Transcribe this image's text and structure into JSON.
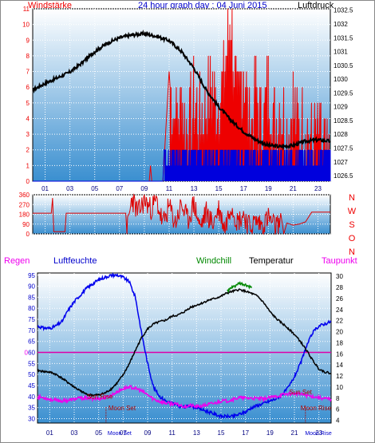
{
  "header": {
    "left_label": "Windstärke",
    "title": "24 hour graph day : 04 Juni 2015",
    "right_label": "Luftdruck"
  },
  "panel3_header": {
    "regen": "Regen",
    "luftfeuchte": "Luftfeuchte",
    "windchill": "Windchill",
    "temperatur": "Temperatur",
    "taupunkt": "Taupunkt"
  },
  "colors": {
    "wind_red": "#ee0000",
    "wind_blue": "#0000dd",
    "pressure": "#000000",
    "direction": "#dd0000",
    "humidity": "#0000ee",
    "temperature": "#000000",
    "dewpoint": "#ee00ee",
    "windchill": "#008800",
    "rain_line": "#dd00aa",
    "grid_dot": "#ffffff",
    "bg_top": "#ffffff",
    "bg_bottom": "#3a8fd0"
  },
  "x_axis": {
    "hour_ticks": [
      "01",
      "03",
      "05",
      "07",
      "09",
      "11",
      "13",
      "15",
      "17",
      "19",
      "21",
      "23"
    ],
    "panel3_ticks": [
      "01",
      "03",
      "05",
      "07",
      "09",
      "11",
      "13",
      "15",
      "17",
      "19",
      "21",
      "23"
    ]
  },
  "chart_data": [
    {
      "type": "line",
      "title": "24 hour graph day : 04 Juni 2015",
      "x_unit": "hour",
      "left_axis": {
        "label": "Windstärke",
        "ticks": [
          "0",
          "1",
          "2",
          "3",
          "4",
          "5",
          "6",
          "7",
          "8",
          "9",
          "10",
          "11"
        ],
        "ylim": [
          0,
          11
        ]
      },
      "right_axis": {
        "label": "Luftdruck",
        "ticks": [
          "1032.5",
          "1032",
          "1031.5",
          "1031",
          "1030.5",
          "1030",
          "1029.5",
          "1029",
          "1028.5",
          "1028",
          "1027.5",
          "1027",
          "1026.5"
        ],
        "ylim": [
          1026.3,
          1032.55
        ]
      },
      "series": [
        {
          "name": "Luftdruck",
          "axis": "right",
          "x": [
            0,
            1,
            2,
            3,
            4,
            5,
            6,
            7,
            8,
            9,
            10,
            11,
            12,
            13,
            14,
            15,
            16,
            17,
            18,
            19,
            20,
            21,
            22,
            23,
            24
          ],
          "values": [
            1029.6,
            1029.85,
            1030.05,
            1030.25,
            1030.6,
            1031.0,
            1031.3,
            1031.5,
            1031.6,
            1031.65,
            1031.55,
            1031.4,
            1031.0,
            1030.4,
            1029.6,
            1029.0,
            1028.5,
            1028.1,
            1027.8,
            1027.6,
            1027.55,
            1027.6,
            1027.75,
            1027.8,
            1027.75
          ]
        },
        {
          "name": "Windböen",
          "axis": "left",
          "x": [
            0,
            9.4,
            9.5,
            9.6,
            10,
            10.5,
            11,
            11.5,
            12,
            12.5,
            13,
            13.5,
            14,
            14.5,
            15,
            15.5,
            16,
            16.5,
            17,
            17.5,
            18,
            18.5,
            19,
            19.5,
            20,
            20.5,
            21,
            21.5,
            22,
            22.5,
            23,
            23.5,
            24
          ],
          "values": [
            0,
            0,
            1,
            0,
            0,
            0,
            7,
            4,
            5,
            3,
            5,
            4,
            5,
            6,
            5,
            7,
            11,
            4,
            8,
            3,
            6,
            3,
            6,
            4,
            5,
            3,
            5,
            3,
            4,
            2,
            3,
            2,
            1
          ]
        },
        {
          "name": "Windmittel",
          "axis": "left",
          "x": [
            0,
            10.5,
            10.6,
            11,
            12,
            13,
            14,
            15,
            16,
            17,
            18,
            19,
            20,
            21,
            22,
            23,
            24
          ],
          "values": [
            0,
            0,
            2,
            2,
            2,
            2,
            2,
            2,
            2,
            2,
            2,
            2,
            2,
            1,
            1,
            1,
            1
          ]
        }
      ]
    },
    {
      "type": "line",
      "x_unit": "hour",
      "left_axis": {
        "ticks": [
          "360",
          "270",
          "180",
          "90",
          "0"
        ],
        "ylim": [
          0,
          360
        ]
      },
      "right_axis": {
        "ticks": [
          "N",
          "W",
          "S",
          "O",
          "N"
        ]
      },
      "series": [
        {
          "name": "Windrichtung",
          "x": [
            0,
            1.5,
            1.6,
            1.7,
            2.6,
            2.7,
            3,
            4,
            5,
            6,
            7,
            7.5,
            7.6,
            8,
            8.5,
            9,
            9.5,
            10,
            10.5,
            11,
            11.5,
            12,
            12.5,
            13,
            13.5,
            14,
            14.5,
            15,
            15.5,
            16,
            16.5,
            17,
            17.5,
            18,
            18.5,
            19,
            19.5,
            20,
            20.5,
            21,
            21.5,
            22,
            22.5,
            23,
            24
          ],
          "values": [
            190,
            190,
            330,
            20,
            20,
            190,
            190,
            190,
            190,
            190,
            190,
            190,
            20,
            330,
            190,
            310,
            230,
            300,
            90,
            250,
            100,
            270,
            120,
            280,
            60,
            200,
            90,
            230,
            50,
            280,
            110,
            180,
            60,
            120,
            80,
            150,
            70,
            90,
            100,
            80,
            90,
            110,
            200,
            200,
            200
          ]
        }
      ]
    },
    {
      "type": "line",
      "x_unit": "hour",
      "left_axis": {
        "label": "Luftfeuchte",
        "ticks": [
          "95",
          "90",
          "85",
          "80",
          "75",
          "70",
          "65",
          "60",
          "55",
          "50",
          "45",
          "40",
          "35",
          "30"
        ],
        "ylim": [
          28,
          96
        ]
      },
      "right_axis": {
        "label": "Temperatur",
        "ticks": [
          "30",
          "28",
          "26",
          "24",
          "22",
          "20",
          "18",
          "16",
          "14",
          "12",
          "10",
          "8",
          "6",
          "4"
        ],
        "ylim": [
          3.5,
          30.6
        ]
      },
      "rain_axis": {
        "label": "Regen",
        "tick": "0"
      },
      "series": [
        {
          "name": "Luftfeuchte",
          "axis": "left",
          "x": [
            0,
            0.5,
            1,
            1.5,
            2,
            2.5,
            3,
            3.5,
            4,
            4.5,
            5,
            5.5,
            6,
            6.5,
            7,
            7.5,
            8,
            8.5,
            9,
            9.5,
            10,
            10.5,
            11,
            11.5,
            12,
            12.5,
            13,
            13.5,
            14,
            14.5,
            15,
            15.5,
            16,
            16.5,
            17,
            17.5,
            18,
            18.5,
            19,
            19.5,
            20,
            20.5,
            21,
            21.5,
            22,
            22.5,
            23,
            23.5,
            24
          ],
          "values": [
            72,
            71,
            71,
            72,
            74,
            79,
            83,
            86,
            89,
            91,
            93,
            94,
            95,
            95,
            94,
            92,
            85,
            69,
            55,
            44,
            40,
            38,
            37,
            36,
            35,
            36,
            35,
            34,
            33,
            32,
            31,
            31,
            31,
            32,
            33,
            35,
            36,
            37,
            38,
            39,
            41,
            44,
            49,
            55,
            63,
            69,
            72,
            73,
            74
          ]
        },
        {
          "name": "Temperatur",
          "axis": "right",
          "x": [
            0,
            0.5,
            1,
            1.5,
            2,
            2.5,
            3,
            3.5,
            4,
            4.5,
            5,
            5.5,
            6,
            6.5,
            7,
            7.5,
            8,
            8.5,
            9,
            9.5,
            10,
            10.5,
            11,
            11.5,
            12,
            12.5,
            13,
            13.5,
            14,
            14.5,
            15,
            15.5,
            16,
            16.5,
            17,
            17.5,
            18,
            18.5,
            19,
            19.5,
            20,
            20.5,
            21,
            21.5,
            22,
            22.5,
            23,
            23.5,
            24
          ],
          "values": [
            13.0,
            12.8,
            12.7,
            12.3,
            11.6,
            10.8,
            10.0,
            9.3,
            8.7,
            8.5,
            8.6,
            8.9,
            9.6,
            10.7,
            12.2,
            14.2,
            16.6,
            18.9,
            20.5,
            21.4,
            21.8,
            22.1,
            22.8,
            23.0,
            23.6,
            24.4,
            24.8,
            25.2,
            25.7,
            26.0,
            26.4,
            27.0,
            27.3,
            27.6,
            27.3,
            26.9,
            26.4,
            25.2,
            23.6,
            22.4,
            21.5,
            20.6,
            19.5,
            18.2,
            16.6,
            14.8,
            13.3,
            12.7,
            12.5
          ]
        },
        {
          "name": "Taupunkt",
          "axis": "right",
          "x": [
            0,
            0.5,
            1,
            1.5,
            2,
            2.5,
            3,
            3.5,
            4,
            4.5,
            5,
            5.5,
            6,
            6.5,
            7,
            7.5,
            8,
            8.5,
            9,
            9.5,
            10,
            10.5,
            11,
            11.5,
            12,
            12.5,
            13,
            13.5,
            14,
            14.5,
            15,
            15.5,
            16,
            16.5,
            17,
            17.5,
            18,
            18.5,
            19,
            19.5,
            20,
            20.5,
            21,
            21.5,
            22,
            22.5,
            23,
            23.5,
            24
          ],
          "values": [
            8.2,
            8.1,
            7.8,
            7.6,
            7.5,
            7.6,
            7.8,
            8.0,
            8.0,
            7.9,
            7.9,
            8.0,
            8.5,
            9.1,
            9.7,
            10.0,
            9.8,
            9.3,
            8.6,
            7.8,
            7.4,
            7.1,
            7.0,
            6.8,
            6.5,
            6.7,
            6.4,
            6.6,
            6.9,
            7.1,
            7.5,
            7.5,
            7.8,
            8.1,
            8.0,
            8.0,
            7.9,
            7.9,
            8.1,
            8.3,
            8.6,
            8.8,
            8.8,
            8.7,
            8.5,
            8.3,
            8.1,
            7.9,
            7.8
          ]
        },
        {
          "name": "Windchill",
          "axis": "right",
          "x": [
            15.5,
            16,
            16.5,
            17,
            17.5
          ],
          "values": [
            27.3,
            28.1,
            28.7,
            28.4,
            27.9
          ]
        }
      ],
      "annotations": {
        "sun_rise": {
          "label": "Sun Rise",
          "hour": 5.1
        },
        "sun_set": {
          "label": "Sun Set",
          "hour": 21.5
        },
        "moon_set": {
          "label": "Moon Set",
          "hour": 5.6
        },
        "moon_rise": {
          "label": "Moon Rise",
          "hour": 21.9
        },
        "moon_set_axis": {
          "label": "Moon Set",
          "hour": 5.6
        },
        "moon_rise_axis": {
          "label": "Moon Rise",
          "hour": 22.0
        }
      }
    }
  ]
}
